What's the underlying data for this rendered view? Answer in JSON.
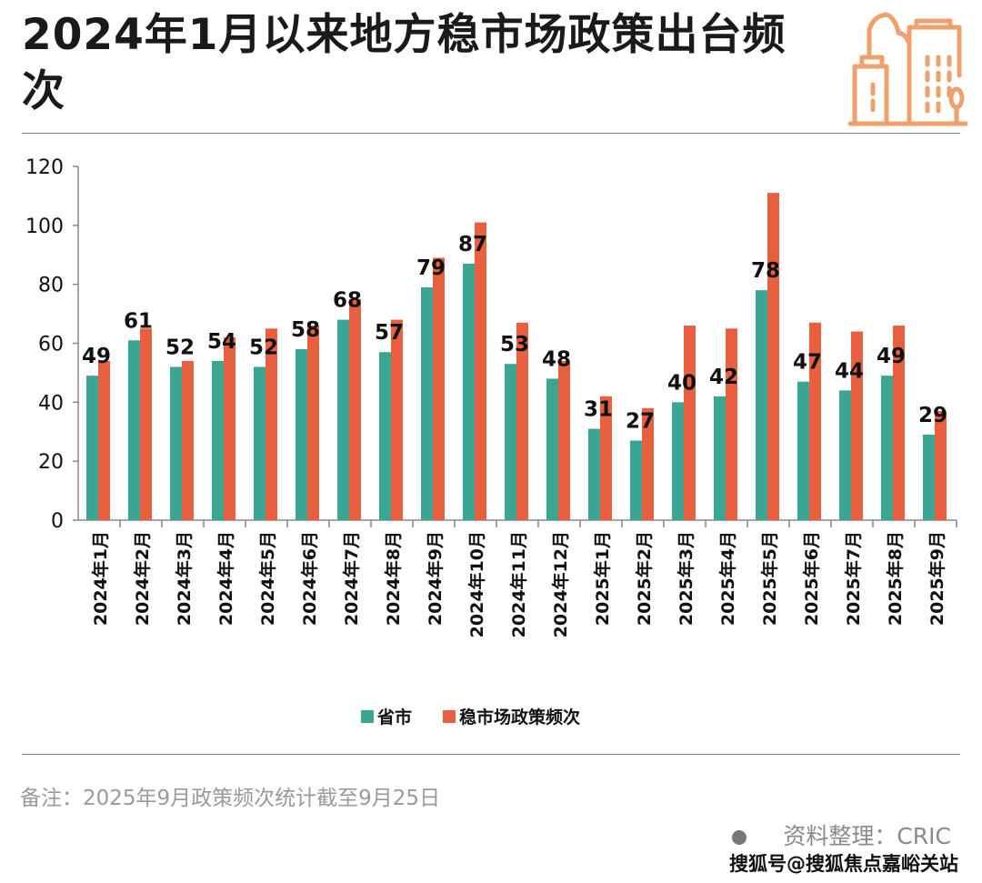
{
  "title": "2024年1月以来地方稳市场政策出台频次",
  "colors": {
    "province_city": "#3aa593",
    "policy_count": "#e8603f",
    "icon": "#f0a06a"
  },
  "header_icon": "city-buildings-icon",
  "chart_data": {
    "type": "bar",
    "categories": [
      "2024年1月",
      "2024年2月",
      "2024年3月",
      "2024年4月",
      "2024年5月",
      "2024年6月",
      "2024年7月",
      "2024年8月",
      "2024年9月",
      "2024年10月",
      "2024年11月",
      "2024年12月",
      "2025年1月",
      "2025年2月",
      "2025年3月",
      "2025年4月",
      "2025年5月",
      "2025年6月",
      "2025年7月",
      "2025年8月",
      "2025年9月"
    ],
    "series": [
      {
        "name": "省市",
        "values": [
          49,
          61,
          52,
          54,
          52,
          58,
          68,
          57,
          79,
          87,
          53,
          48,
          31,
          27,
          40,
          42,
          78,
          47,
          44,
          49,
          29
        ],
        "data_labels": true
      },
      {
        "name": "稳市场政策频次",
        "values": [
          54,
          65,
          54,
          62,
          65,
          66,
          75,
          68,
          89,
          101,
          67,
          54,
          42,
          38,
          66,
          65,
          111,
          67,
          64,
          66,
          37
        ],
        "data_labels": false
      }
    ],
    "yticks": [
      0,
      20,
      40,
      60,
      80,
      100,
      120
    ],
    "ylim": [
      0,
      120
    ],
    "grid": false,
    "legend": "bottom-center"
  },
  "footer": {
    "note": "备注：2025年9月政策频次统计截至9月25日",
    "source": "资料整理：CRIC",
    "watermark": "搜狐号@搜狐焦点嘉峪关站"
  }
}
